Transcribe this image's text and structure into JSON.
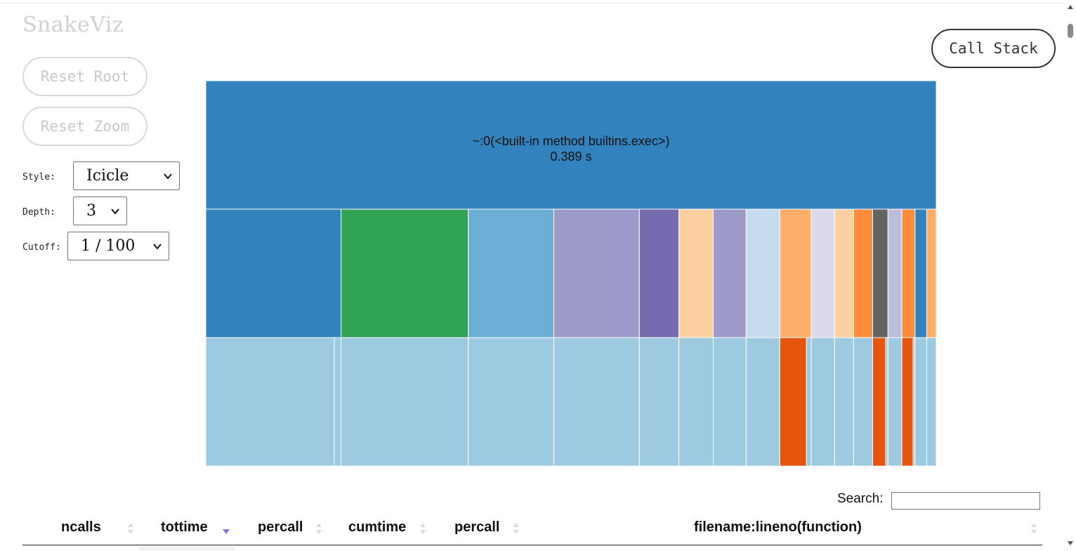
{
  "app": {
    "title": "SnakeViz"
  },
  "controls": {
    "reset_root_label": "Reset Root",
    "reset_zoom_label": "Reset Zoom",
    "call_stack_label": "Call Stack",
    "style_label": "Style:",
    "style_value": "Icicle",
    "depth_label": "Depth:",
    "depth_value": "3",
    "cutoff_label": "Cutoff:",
    "cutoff_value": "1 / 100"
  },
  "icicle": {
    "root": {
      "label": "~:0(<built-in method builtins.exec>)",
      "time_label": "0.389 s",
      "color": "#3182bd"
    },
    "level1_share": [
      0.185,
      0.174,
      0.117,
      0.117,
      0.054,
      0.047,
      0.045,
      0.046,
      0.043,
      0.032,
      0.026,
      0.026,
      0.021,
      0.019,
      0.018,
      0.016,
      0.013
    ],
    "level1_colors": [
      "#3182bd",
      "#31a354",
      "#6baed6",
      "#9e9ac8",
      "#756bb1",
      "#fdd0a2",
      "#9e9ac8",
      "#c6dbef",
      "#fdae6b",
      "#dadaeb",
      "#fdd0a2",
      "#fd8d3c",
      "#636363",
      "#bcbddc",
      "#fd8d3c",
      "#3182bd",
      "#fdae6b"
    ],
    "level2_light_color": "#9ecae1",
    "level2_dark_color": "#e6550d",
    "level2_dark_parents": [
      8,
      12,
      14
    ]
  },
  "search": {
    "label": "Search:",
    "value": ""
  },
  "table": {
    "columns": [
      {
        "label": "ncalls",
        "sort": "none"
      },
      {
        "label": "tottime",
        "sort": "desc"
      },
      {
        "label": "percall",
        "sort": "none"
      },
      {
        "label": "cumtime",
        "sort": "none"
      },
      {
        "label": "percall",
        "sort": "none"
      },
      {
        "label": "filename:lineno(function)",
        "sort": "none"
      }
    ]
  },
  "icons": [
    "chevron-down-icon",
    "sort-both-icon",
    "sort-desc-icon",
    "scroll-up-icon",
    "scroll-down-icon"
  ]
}
